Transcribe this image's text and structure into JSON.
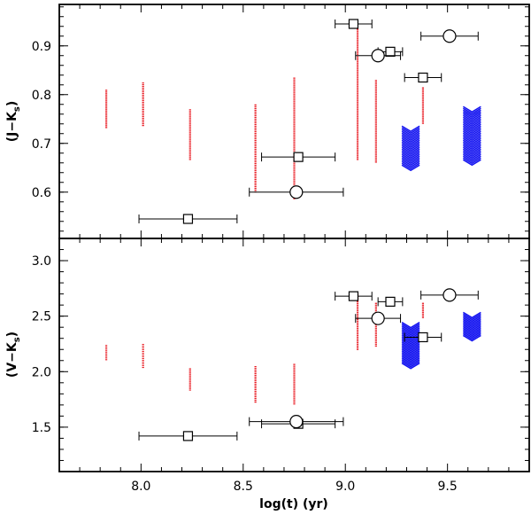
{
  "chart_data": [
    {
      "type": "scatter",
      "panel": "top",
      "xlabel": "log(t) (yr)",
      "ylabel": "(J−K",
      "ylabel_sub": "s",
      "ylabel_close": ")",
      "xlim": [
        7.6,
        9.9
      ],
      "ylim": [
        0.505,
        0.985
      ],
      "yticks": [
        0.6,
        0.7,
        0.8,
        0.9
      ],
      "ytick_labels": [
        "0.6",
        "0.7",
        "0.8",
        "0.9"
      ],
      "colors": {
        "model_red": "#e8141c",
        "model_blue": "#1414f0",
        "data": "#000000"
      },
      "model_red": [
        {
          "x": 7.83,
          "ymin": 0.73,
          "ymax": 0.81
        },
        {
          "x": 8.01,
          "ymin": 0.735,
          "ymax": 0.825
        },
        {
          "x": 8.24,
          "ymin": 0.665,
          "ymax": 0.77
        },
        {
          "x": 8.56,
          "ymin": 0.6,
          "ymax": 0.78
        },
        {
          "x": 8.75,
          "ymin": 0.585,
          "ymax": 0.835
        },
        {
          "x": 9.06,
          "ymin": 0.665,
          "ymax": 0.935
        },
        {
          "x": 9.15,
          "ymin": 0.66,
          "ymax": 0.83
        },
        {
          "x": 9.38,
          "ymin": 0.74,
          "ymax": 0.815
        }
      ],
      "model_blue": [
        {
          "x": 9.32,
          "ymin": 0.65,
          "ymax": 0.73
        },
        {
          "x": 9.62,
          "ymin": 0.66,
          "ymax": 0.77
        }
      ],
      "squares": [
        {
          "x": 8.23,
          "y": 0.545,
          "xerr": 0.24
        },
        {
          "x": 8.77,
          "y": 0.672,
          "xerr": 0.18
        },
        {
          "x": 9.04,
          "y": 0.945,
          "xerr": 0.09
        },
        {
          "x": 9.22,
          "y": 0.888,
          "xerr": 0.06
        },
        {
          "x": 9.38,
          "y": 0.835,
          "xerr": 0.09
        }
      ],
      "circles": [
        {
          "x": 8.76,
          "y": 0.6,
          "xerr": 0.23
        },
        {
          "x": 9.16,
          "y": 0.88,
          "xerr": 0.11
        },
        {
          "x": 9.51,
          "y": 0.92,
          "xerr": 0.14
        }
      ]
    },
    {
      "type": "scatter",
      "panel": "bottom",
      "xlabel": "log(t) (yr)",
      "ylabel": "(V−K",
      "ylabel_sub": "s",
      "ylabel_close": ")",
      "xlim": [
        7.6,
        9.9
      ],
      "ylim": [
        1.1,
        3.2
      ],
      "yticks": [
        1.5,
        2.0,
        2.5,
        3.0
      ],
      "ytick_labels": [
        "1.5",
        "2.0",
        "2.5",
        "3.0"
      ],
      "xticks": [
        8.0,
        8.5,
        9.0,
        9.5
      ],
      "xtick_labels": [
        "8.0",
        "8.5",
        "9.0",
        "9.5"
      ],
      "colors": {
        "model_red": "#e8141c",
        "model_blue": "#1414f0",
        "data": "#000000"
      },
      "model_red": [
        {
          "x": 7.83,
          "ymin": 2.1,
          "ymax": 2.24
        },
        {
          "x": 8.01,
          "ymin": 2.03,
          "ymax": 2.25
        },
        {
          "x": 8.24,
          "ymin": 1.83,
          "ymax": 2.03
        },
        {
          "x": 8.56,
          "ymin": 1.72,
          "ymax": 2.05
        },
        {
          "x": 8.75,
          "ymin": 1.7,
          "ymax": 2.07
        },
        {
          "x": 9.06,
          "ymin": 2.19,
          "ymax": 2.7
        },
        {
          "x": 9.15,
          "ymin": 2.22,
          "ymax": 2.62
        },
        {
          "x": 9.38,
          "ymin": 2.48,
          "ymax": 2.62
        }
      ],
      "model_blue": [
        {
          "x": 9.32,
          "ymin": 2.05,
          "ymax": 2.42
        },
        {
          "x": 9.62,
          "ymin": 2.3,
          "ymax": 2.51
        }
      ],
      "squares": [
        {
          "x": 8.23,
          "y": 1.42,
          "xerr": 0.24
        },
        {
          "x": 8.77,
          "y": 1.53,
          "xerr": 0.18
        },
        {
          "x": 9.04,
          "y": 2.68,
          "xerr": 0.09
        },
        {
          "x": 9.22,
          "y": 2.63,
          "xerr": 0.06
        },
        {
          "x": 9.38,
          "y": 2.31,
          "xerr": 0.09
        }
      ],
      "circles": [
        {
          "x": 8.76,
          "y": 1.55,
          "xerr": 0.23
        },
        {
          "x": 9.16,
          "y": 2.48,
          "xerr": 0.11
        },
        {
          "x": 9.51,
          "y": 2.69,
          "xerr": 0.14
        }
      ]
    }
  ]
}
